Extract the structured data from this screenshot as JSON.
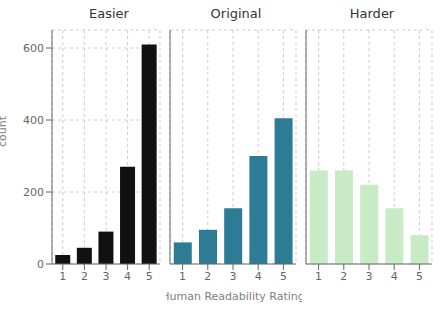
{
  "chart_data": [
    {
      "type": "bar",
      "title": "Easier",
      "categories": [
        "1",
        "2",
        "3",
        "4",
        "5"
      ],
      "values": [
        25,
        45,
        90,
        270,
        610
      ],
      "color": "#111111",
      "ylim": [
        0,
        650
      ],
      "yticks": [
        0,
        200,
        400,
        600
      ],
      "grid": true,
      "ylabel": "count"
    },
    {
      "type": "bar",
      "title": "Original",
      "categories": [
        "1",
        "2",
        "3",
        "4",
        "5"
      ],
      "values": [
        60,
        95,
        155,
        300,
        405
      ],
      "color": "#2e7b96",
      "ylim": [
        0,
        650
      ],
      "yticks": [
        0,
        200,
        400,
        600
      ],
      "grid": true,
      "xlabel": "Human Readability Rating",
      "tick_labels": "x"
    },
    {
      "type": "bar",
      "title": "Harder",
      "categories": [
        "1",
        "2",
        "3",
        "4",
        "5"
      ],
      "values": [
        260,
        260,
        220,
        155,
        80
      ],
      "color": "#c8eac4",
      "ylim": [
        0,
        650
      ],
      "yticks": [
        0,
        200,
        400,
        600
      ],
      "grid": true,
      "tick_labels": "x"
    }
  ]
}
